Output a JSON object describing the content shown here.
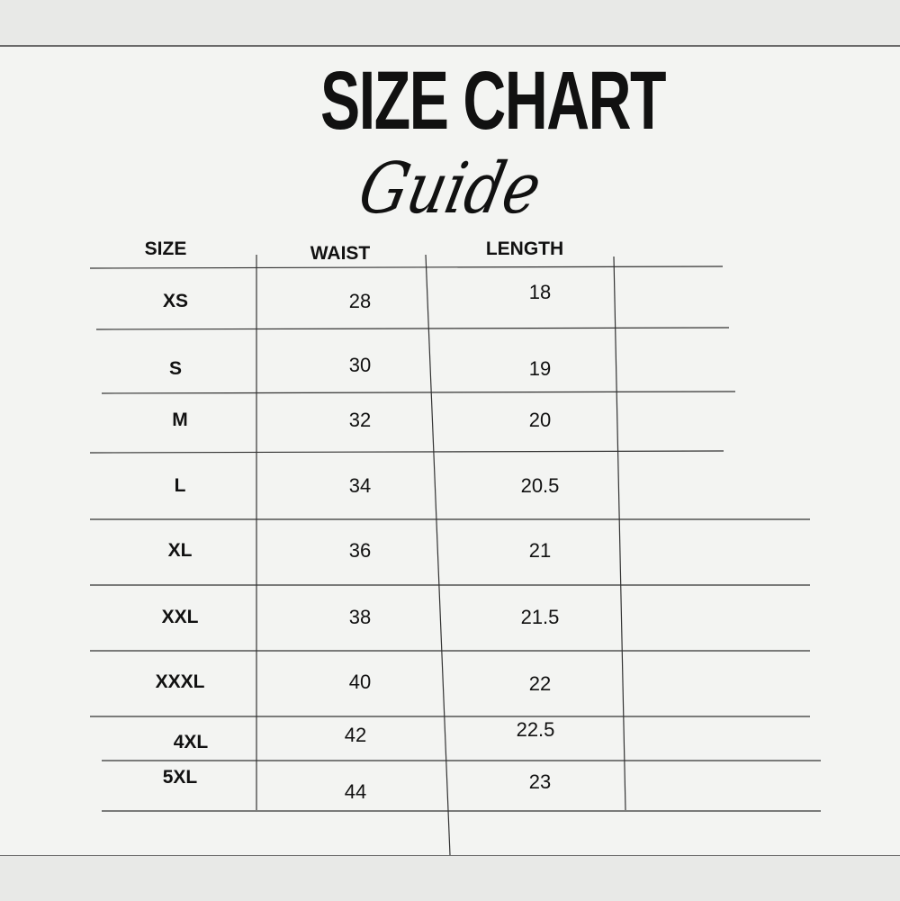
{
  "title": "SIZE CHART",
  "subtitle": "Guide",
  "headers": [
    "SIZE",
    "WAIST",
    "LENGTH"
  ],
  "rows": [
    {
      "size": "XS",
      "waist": "28",
      "length": "18"
    },
    {
      "size": "S",
      "waist": "30",
      "length": "19"
    },
    {
      "size": "M",
      "waist": "32",
      "length": "20"
    },
    {
      "size": "L",
      "waist": "34",
      "length": "20.5"
    },
    {
      "size": "XL",
      "waist": "36",
      "length": "21"
    },
    {
      "size": "XXL",
      "waist": "38",
      "length": "21.5"
    },
    {
      "size": "XXXL",
      "waist": "40",
      "length": "22"
    },
    {
      "size": "4XL",
      "waist": "42",
      "length": "22.5"
    },
    {
      "size": "5XL",
      "waist": "44",
      "length": "23"
    }
  ],
  "colors": {
    "background": "#f3f4f2",
    "band": "#e8e9e7",
    "text": "#111111",
    "lines": "#333333"
  }
}
